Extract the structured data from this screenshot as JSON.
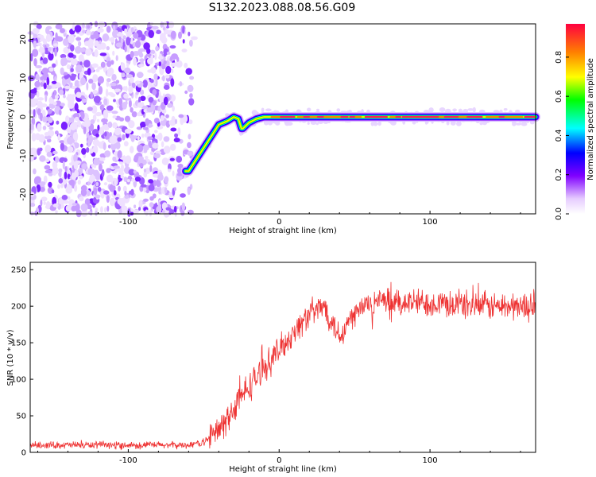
{
  "title": "S132.2023.088.08.56.G09",
  "chart_data": [
    {
      "type": "heatmap",
      "xlabel": "Height of straight line (km)",
      "ylabel": "Frequency (Hz)",
      "xlim": [
        -165,
        170
      ],
      "ylim": [
        -25,
        24
      ],
      "xticks": [
        -100,
        0,
        100
      ],
      "yticks": [
        -20,
        -10,
        0,
        10,
        20
      ],
      "colorbar": {
        "label": "Normalized spectral amplitude",
        "range": [
          0,
          1
        ],
        "ticks": [
          "0.0",
          "0.2",
          "0.4",
          "0.6",
          "0.8"
        ],
        "colors": [
          "#ffffff",
          "#e6ccff",
          "#8000ff",
          "#0000ff",
          "#00ffff",
          "#00ff00",
          "#ffff00",
          "#ff8000",
          "#ff0040"
        ]
      },
      "ridge": {
        "description_points_x": [
          -60,
          -50,
          -40,
          -34,
          -30,
          -27,
          -25,
          -24,
          -20,
          -15,
          -10,
          0,
          170
        ],
        "description_points_y": [
          -14,
          -8,
          -2,
          -1,
          0,
          -0.5,
          -3,
          -3,
          -1.5,
          -0.5,
          0,
          0,
          0
        ]
      },
      "noise_region_x": [
        -165,
        -55
      ]
    },
    {
      "type": "line",
      "xlabel": "Height of straight line (km)",
      "ylabel": "SNR (10 * v/v)",
      "xlim": [
        -165,
        170
      ],
      "ylim": [
        0,
        260
      ],
      "xticks": [
        -100,
        0,
        100
      ],
      "yticks": [
        0,
        50,
        100,
        150,
        200,
        250
      ],
      "color": "#ee3333",
      "trend_x": [
        -165,
        -60,
        -50,
        -40,
        -30,
        -20,
        -10,
        0,
        10,
        20,
        30,
        40,
        50,
        60,
        100,
        140,
        170
      ],
      "trend_y": [
        10,
        10,
        14,
        30,
        60,
        90,
        115,
        140,
        165,
        190,
        200,
        160,
        190,
        205,
        205,
        200,
        200
      ]
    }
  ]
}
